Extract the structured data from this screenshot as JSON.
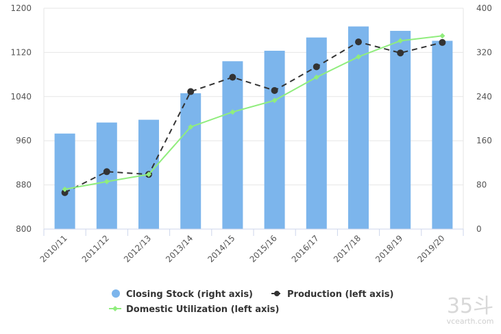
{
  "chart_data": {
    "type": "bar+line",
    "categories": [
      "2010/11",
      "2011/12",
      "2012/13",
      "2013/14",
      "2014/15",
      "2015/16",
      "2016/17",
      "2017/18",
      "2018/19",
      "2019/20"
    ],
    "series": [
      {
        "name": "Closing Stock (right axis)",
        "type": "bar",
        "axis": "right",
        "color": "#7cb5ec",
        "values": [
          173,
          193,
          198,
          246,
          304,
          323,
          347,
          367,
          359,
          341
        ]
      },
      {
        "name": "Production (left axis)",
        "type": "line",
        "axis": "left",
        "color": "#333333",
        "dash": true,
        "values": [
          866,
          904,
          899,
          1049,
          1075,
          1051,
          1094,
          1139,
          1119,
          1138
        ]
      },
      {
        "name": "Domestic Utilization (left axis)",
        "type": "line",
        "axis": "left",
        "color": "#90ed7d",
        "values": [
          872,
          886,
          899,
          985,
          1012,
          1033,
          1075,
          1112,
          1141,
          1150
        ]
      }
    ],
    "left_axis": {
      "min": 800,
      "max": 1200,
      "ticks": [
        800,
        880,
        960,
        1040,
        1120,
        1200
      ]
    },
    "right_axis": {
      "min": 0,
      "max": 400,
      "ticks": [
        0,
        80,
        160,
        240,
        320,
        400
      ]
    },
    "grid": true,
    "legend_position": "bottom-center",
    "title": "",
    "xlabel": "",
    "ylabel": ""
  },
  "watermark": {
    "logo": "35斗",
    "site": "vcearth.com"
  }
}
